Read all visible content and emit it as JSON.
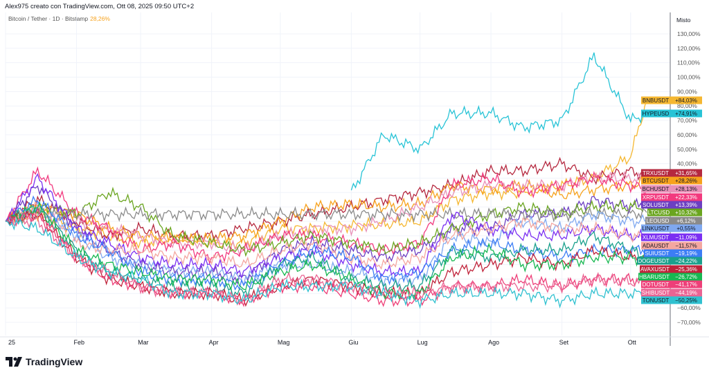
{
  "header": {
    "attribution": "Alex975 creato con TradingView.com, Ott 08, 2025 09:50 UTC+2"
  },
  "legend": {
    "symbol": "Bitcoin / Tether · 1D · Bitstamp",
    "value": "28,26%"
  },
  "scale_mode": "Misto",
  "logo": {
    "text": "TradingView"
  },
  "chart_data": {
    "type": "line",
    "title": "",
    "xlabel": "",
    "ylabel": "",
    "x_ticks": [
      "25",
      "Feb",
      "Mar",
      "Apr",
      "Mag",
      "Giu",
      "Lug",
      "Ago",
      "Set",
      "Ott"
    ],
    "y_ticks": [
      "130,00%",
      "120,00%",
      "110,00%",
      "100,00%",
      "90,00%",
      "80,00%",
      "70,00%",
      "60,00%",
      "50,00%",
      "40,00%",
      "−60,00%",
      "−70,00%"
    ],
    "ylim": [
      -75,
      135
    ],
    "grid": true,
    "legend_placement": "right-axis-labels",
    "x": [
      "2025-01-01",
      "2025-01-15",
      "2025-02-01",
      "2025-02-15",
      "2025-03-01",
      "2025-03-15",
      "2025-04-01",
      "2025-04-15",
      "2025-05-01",
      "2025-05-15",
      "2025-06-01",
      "2025-06-15",
      "2025-07-01",
      "2025-07-15",
      "2025-08-01",
      "2025-08-15",
      "2025-09-01",
      "2025-09-15",
      "2025-10-01",
      "2025-10-08"
    ],
    "series": [
      {
        "name": "BNBUSDT",
        "label": "+84,03%",
        "color": "#f5b731",
        "text": "#131722",
        "values": [
          0,
          5,
          -5,
          -10,
          -15,
          -12,
          -15,
          -15,
          -5,
          -5,
          -3,
          -2,
          0,
          15,
          20,
          20,
          25,
          30,
          45,
          84.03
        ]
      },
      {
        "name": "HYPEUSD",
        "label": "+74,91%",
        "color": "#27c3d6",
        "text": "#131722",
        "values": [
          null,
          null,
          null,
          null,
          null,
          null,
          null,
          null,
          null,
          null,
          20,
          60,
          50,
          75,
          75,
          65,
          70,
          115,
          70,
          74.91
        ]
      },
      {
        "name": "TRXUSDT",
        "label": "+31,65%",
        "color": "#b5283f",
        "text": "#ffffff",
        "values": [
          0,
          15,
          0,
          -10,
          -5,
          -10,
          -10,
          -5,
          0,
          5,
          10,
          15,
          20,
          25,
          35,
          35,
          40,
          30,
          35,
          31.65
        ]
      },
      {
        "name": "BTCUSDT",
        "label": "+28,26%",
        "color": "#f7a21c",
        "text": "#131722",
        "values": [
          0,
          10,
          5,
          -5,
          -10,
          -12,
          -12,
          -10,
          0,
          10,
          12,
          10,
          12,
          25,
          22,
          25,
          18,
          22,
          25,
          28.26
        ]
      },
      {
        "name": "BCHUSDT",
        "label": "+28,13%",
        "color": "#e891b8",
        "text": "#131722",
        "values": [
          0,
          5,
          0,
          -5,
          -10,
          -15,
          -15,
          -20,
          -10,
          -5,
          -5,
          0,
          10,
          20,
          25,
          25,
          25,
          30,
          30,
          28.13
        ]
      },
      {
        "name": "XRPUSDT",
        "label": "+22,33%",
        "color": "#f2397e",
        "text": "#ffffff",
        "values": [
          0,
          35,
          5,
          -5,
          -20,
          -15,
          -25,
          -20,
          -10,
          -10,
          -15,
          -20,
          -15,
          25,
          30,
          20,
          25,
          30,
          25,
          22.33
        ]
      },
      {
        "name": "SOLUSDT",
        "label": "+13,39%",
        "color": "#6c3fc2",
        "text": "#ffffff",
        "values": [
          0,
          25,
          -5,
          -20,
          -30,
          -35,
          -35,
          -40,
          -20,
          -15,
          -20,
          -25,
          -20,
          -5,
          -5,
          5,
          5,
          15,
          10,
          13.39
        ]
      },
      {
        "name": "LTCUSD",
        "label": "+10,32%",
        "color": "#6aa51f",
        "text": "#ffffff",
        "values": [
          0,
          10,
          5,
          20,
          10,
          -10,
          -15,
          -20,
          -15,
          -10,
          -15,
          -20,
          -15,
          -5,
          5,
          10,
          5,
          10,
          10,
          10.32
        ]
      },
      {
        "name": "LEOUSD",
        "label": "+6,12%",
        "color": "#8a8a8a",
        "text": "#ffffff",
        "values": [
          0,
          5,
          5,
          5,
          5,
          5,
          5,
          5,
          5,
          5,
          5,
          5,
          5,
          5,
          5,
          5,
          5,
          5,
          5,
          6.12
        ]
      },
      {
        "name": "LINKUSDT",
        "label": "+0,55%",
        "color": "#7fa8f0",
        "text": "#131722",
        "values": [
          0,
          10,
          -10,
          -25,
          -30,
          -35,
          -35,
          -40,
          -30,
          -30,
          -35,
          -40,
          -40,
          -10,
          -15,
          0,
          -5,
          5,
          0,
          0.55
        ]
      },
      {
        "name": "XLMUSDT",
        "label": "−11,09%",
        "color": "#7b2ff2",
        "text": "#ffffff",
        "values": [
          0,
          30,
          -5,
          -15,
          -25,
          -30,
          -30,
          -35,
          -25,
          -20,
          -30,
          -35,
          -35,
          5,
          -5,
          -10,
          -10,
          -5,
          -10,
          -11.09
        ]
      },
      {
        "name": "ADAUSDT",
        "label": "−11,57%",
        "color": "#f4a7a0",
        "text": "#131722",
        "values": [
          0,
          10,
          -15,
          -20,
          -20,
          -25,
          -25,
          -30,
          -20,
          -15,
          -25,
          -30,
          -25,
          -10,
          -5,
          0,
          -5,
          -5,
          -10,
          -11.57
        ]
      },
      {
        "name": "SUIUSDT",
        "label": "−19,19%",
        "color": "#3c7df5",
        "text": "#ffffff",
        "values": [
          0,
          15,
          -10,
          -20,
          -35,
          -40,
          -40,
          -45,
          -30,
          -20,
          -25,
          -40,
          -35,
          -20,
          -15,
          -20,
          -25,
          -20,
          -20,
          -19.19
        ]
      },
      {
        "name": "DOGEUSDT",
        "label": "−24,22%",
        "color": "#1aa08c",
        "text": "#ffffff",
        "values": [
          0,
          10,
          -20,
          -35,
          -40,
          -45,
          -45,
          -50,
          -30,
          -25,
          -40,
          -45,
          -45,
          -20,
          -25,
          -20,
          -20,
          -10,
          -20,
          -24.22
        ]
      },
      {
        "name": "AVAXUSDT",
        "label": "−25,36%",
        "color": "#c0223a",
        "text": "#ffffff",
        "values": [
          0,
          5,
          -25,
          -40,
          -45,
          -50,
          -50,
          -55,
          -45,
          -40,
          -45,
          -50,
          -50,
          -35,
          -30,
          -25,
          -30,
          -20,
          -25,
          -25.36
        ]
      },
      {
        "name": "HBARUSDT",
        "label": "−26,72%",
        "color": "#17b851",
        "text": "#ffffff",
        "values": [
          0,
          10,
          -20,
          -30,
          -35,
          -40,
          -40,
          -45,
          -35,
          -30,
          -40,
          -50,
          -50,
          -25,
          -20,
          -30,
          -30,
          -25,
          -25,
          -26.72
        ]
      },
      {
        "name": "DOTUSDT",
        "label": "−41,17%",
        "color": "#ee3f78",
        "text": "#ffffff",
        "values": [
          0,
          5,
          -25,
          -40,
          -45,
          -50,
          -50,
          -55,
          -45,
          -45,
          -50,
          -55,
          -55,
          -45,
          -45,
          -40,
          -45,
          -40,
          -40,
          -41.17
        ]
      },
      {
        "name": "SHIBUSDT",
        "label": "−44,19%",
        "color": "#ea6493",
        "text": "#ffffff",
        "values": [
          0,
          0,
          -25,
          -35,
          -45,
          -50,
          -50,
          -55,
          -40,
          -40,
          -45,
          -50,
          -50,
          -45,
          -45,
          -45,
          -45,
          -40,
          -42,
          -44.19
        ]
      },
      {
        "name": "TONUSDT",
        "label": "−50,25%",
        "color": "#30c1d0",
        "text": "#131722",
        "values": [
          0,
          -5,
          -25,
          -35,
          -40,
          -50,
          -50,
          -55,
          -45,
          -45,
          -45,
          -50,
          -55,
          -50,
          -50,
          -50,
          -55,
          -50,
          -50,
          -50.25
        ]
      }
    ]
  }
}
